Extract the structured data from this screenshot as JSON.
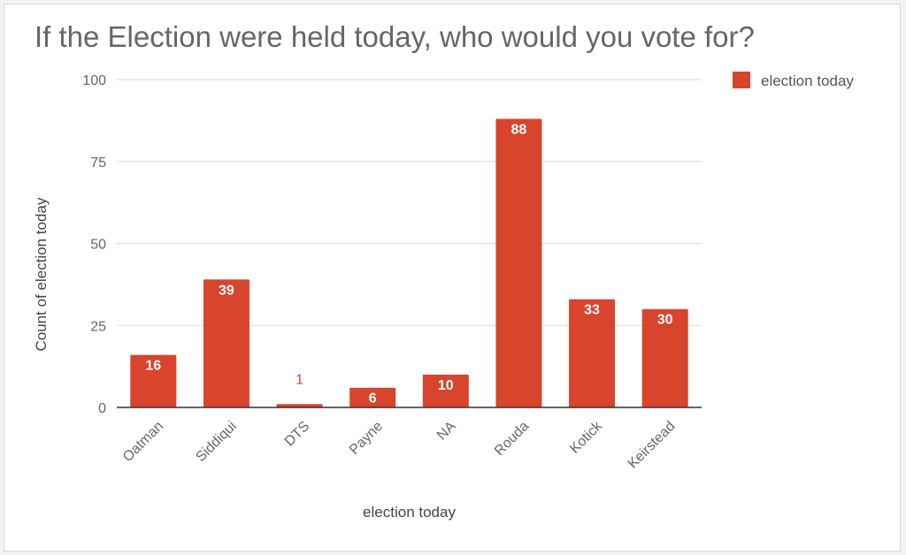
{
  "chart_data": {
    "type": "bar",
    "title": "If the Election were held today, who would you vote for?",
    "xlabel": "election today",
    "ylabel": "Count of election today",
    "categories": [
      "Oatman",
      "Siddiqui",
      "DTS",
      "Payne",
      "NA",
      "Rouda",
      "Kotick",
      "Keirstead"
    ],
    "series": [
      {
        "name": "election today",
        "values": [
          16,
          39,
          1,
          6,
          10,
          88,
          33,
          30
        ],
        "color": "#d8442c"
      }
    ],
    "ylim": [
      0,
      100
    ],
    "yticks": [
      "0",
      "25",
      "50",
      "75",
      "100"
    ],
    "grid": true,
    "legend": "top-right"
  }
}
